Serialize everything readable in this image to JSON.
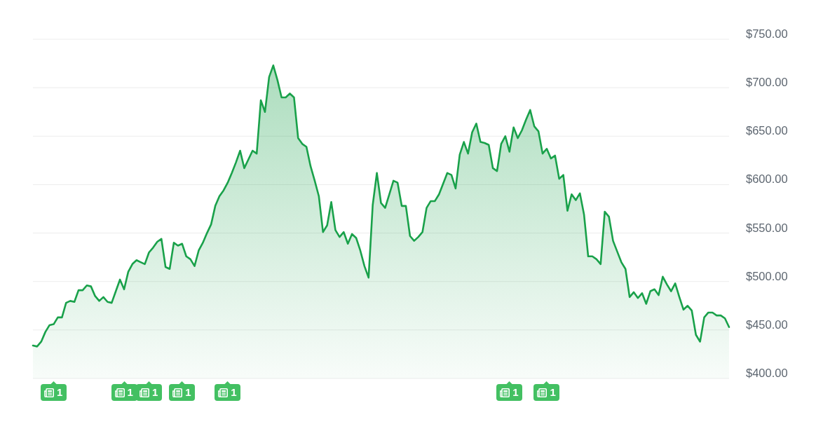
{
  "chart_data": {
    "type": "area",
    "categories": [
      null,
      null,
      null,
      null,
      null,
      null,
      null,
      null,
      null,
      null,
      null,
      null,
      null,
      null,
      null,
      null,
      null,
      null,
      null,
      null,
      null,
      null,
      null,
      null,
      null,
      null,
      null,
      null,
      null,
      null,
      null,
      null,
      null,
      null,
      null,
      null,
      null,
      null,
      null,
      null,
      null,
      null,
      null,
      null,
      null,
      null,
      null,
      null,
      null,
      null,
      null,
      null,
      null,
      null,
      null,
      null,
      null,
      null,
      null,
      null,
      null,
      null,
      null,
      null,
      null,
      null,
      null,
      null,
      null,
      null,
      null,
      null,
      null,
      null,
      null,
      null,
      null,
      null,
      null,
      null,
      null,
      null,
      null,
      null,
      null,
      null,
      null,
      null,
      null,
      null,
      null,
      null,
      null,
      null,
      null,
      null,
      null,
      null,
      null,
      null,
      null,
      null,
      null,
      null,
      null,
      null,
      null,
      null,
      null,
      null,
      null,
      null,
      null,
      null,
      null,
      null,
      null,
      null,
      null,
      null,
      null,
      null,
      null,
      null,
      null,
      null,
      null,
      null,
      null,
      null,
      null,
      null,
      null,
      null,
      null,
      null,
      null,
      null,
      null,
      null,
      null,
      null,
      null,
      null,
      null,
      null,
      null,
      null,
      null,
      null,
      null,
      null,
      null,
      null,
      null,
      null,
      null,
      null,
      null,
      null,
      null,
      null,
      null,
      null,
      null,
      null,
      null,
      null,
      null
    ],
    "series": [
      {
        "color": "#19a14a",
        "values": [
          434,
          433,
          438,
          448,
          455,
          456,
          463,
          463,
          478,
          480,
          479,
          491,
          491,
          496,
          495,
          485,
          480,
          484,
          479,
          478,
          490,
          502,
          492,
          510,
          518,
          522,
          520,
          518,
          530,
          535,
          541,
          544,
          515,
          513,
          540,
          537,
          539,
          526,
          523,
          516,
          532,
          540,
          550,
          559,
          578,
          588,
          594,
          602,
          612,
          623,
          635,
          617,
          626,
          635,
          632,
          687,
          675,
          711,
          723,
          708,
          690,
          690,
          694,
          690,
          648,
          642,
          639,
          619,
          604,
          588,
          551,
          558,
          582,
          553,
          546,
          551,
          539,
          549,
          545,
          532,
          516,
          504,
          579,
          612,
          581,
          576,
          590,
          604,
          602,
          578,
          578,
          547,
          542,
          546,
          551,
          576,
          583,
          583,
          590,
          601,
          612,
          610,
          596,
          631,
          644,
          632,
          654,
          663,
          644,
          643,
          641,
          617,
          614,
          642,
          650,
          634,
          659,
          648,
          656,
          667,
          677,
          660,
          655,
          632,
          637,
          627,
          630,
          606,
          610,
          573,
          590,
          584,
          591,
          569,
          526,
          526,
          523,
          518,
          572,
          567,
          542,
          531,
          520,
          513,
          484,
          489,
          483,
          488,
          477,
          490,
          492,
          486,
          505,
          497,
          490,
          498,
          484,
          471,
          475,
          470,
          445,
          438,
          463,
          468,
          468,
          465,
          465,
          462,
          453
        ]
      }
    ],
    "ylim": [
      400,
      750
    ],
    "yticks": [
      {
        "value": 400,
        "label": "$400.00"
      },
      {
        "value": 450,
        "label": "$450.00"
      },
      {
        "value": 500,
        "label": "$500.00"
      },
      {
        "value": 550,
        "label": "$550.00"
      },
      {
        "value": 600,
        "label": "$600.00"
      },
      {
        "value": 650,
        "label": "$650.00"
      },
      {
        "value": 700,
        "label": "$700.00"
      },
      {
        "value": 750,
        "label": "$750.00"
      }
    ],
    "grid": "y",
    "tick_labels": "y",
    "annotations": [
      "1",
      "1",
      "1",
      "1",
      "1",
      "1",
      "1"
    ]
  }
}
